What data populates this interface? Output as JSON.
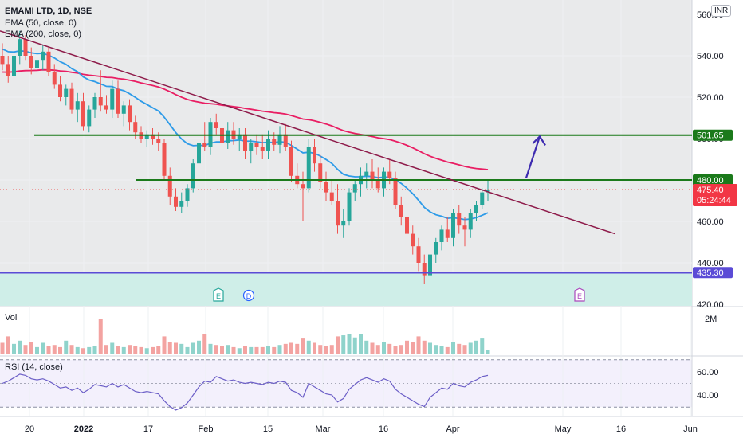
{
  "header": {
    "title": "EMAMI LTD, 1D, NSE",
    "ema50_label": "EMA (50, close, 0)",
    "ema200_label": "EMA (200, close, 0)",
    "currency": "INR"
  },
  "colors": {
    "up": "#26a69a",
    "down": "#ef5350",
    "ema50": "#2e9be8",
    "ema200": "#e91e63",
    "trendline": "#8e1b4a",
    "level": "#1b7a1b",
    "support": "#5b4bd6",
    "zone": "#cfeee8",
    "arrow": "#3d2bb0",
    "rsi": "#6c5fc7",
    "grid": "#eef0f3",
    "plot_bg": "#e9eaeb"
  },
  "chart_data": {
    "type": "candlestick",
    "price_axis": {
      "ticks": [
        "540.00",
        "520.00",
        "500.00",
        "480.00",
        "460.00",
        "440.00",
        "420.00"
      ],
      "cut_top_tick": "560.00"
    },
    "time_axis": {
      "labels": [
        "20",
        "2022",
        "17",
        "Feb",
        "15",
        "Mar",
        "16",
        "Apr",
        "May",
        "16",
        "Jun"
      ]
    },
    "price_labels": [
      {
        "value": "501.65",
        "kind": "level"
      },
      {
        "value": "480.00",
        "kind": "level"
      },
      {
        "value": "475.40",
        "kind": "last"
      },
      {
        "value": "05:24:44",
        "kind": "countdown"
      },
      {
        "value": "435.30",
        "kind": "support"
      }
    ],
    "events": [
      {
        "label": "E",
        "kind": "earnings"
      },
      {
        "label": "D",
        "kind": "dividend"
      },
      {
        "label": "E",
        "kind": "earnings-upcoming"
      }
    ],
    "ohlc": [
      [
        540,
        546,
        533,
        536
      ],
      [
        536,
        540,
        527,
        530
      ],
      [
        530,
        542,
        528,
        540
      ],
      [
        540,
        552,
        536,
        548
      ],
      [
        548,
        550,
        538,
        540
      ],
      [
        540,
        544,
        531,
        534
      ],
      [
        534,
        542,
        530,
        538
      ],
      [
        538,
        545,
        533,
        542
      ],
      [
        542,
        544,
        530,
        532
      ],
      [
        532,
        536,
        524,
        526
      ],
      [
        526,
        530,
        518,
        520
      ],
      [
        520,
        526,
        516,
        524
      ],
      [
        524,
        527,
        512,
        514
      ],
      [
        514,
        522,
        508,
        518
      ],
      [
        518,
        522,
        504,
        506
      ],
      [
        506,
        516,
        503,
        514
      ],
      [
        514,
        522,
        510,
        520
      ],
      [
        520,
        533,
        513,
        516
      ],
      [
        516,
        521,
        512,
        514
      ],
      [
        514,
        528,
        510,
        524
      ],
      [
        524,
        528,
        510,
        512
      ],
      [
        512,
        518,
        506,
        516
      ],
      [
        516,
        519,
        504,
        508
      ],
      [
        508,
        511,
        500,
        503
      ],
      [
        503,
        506,
        498,
        500
      ],
      [
        500,
        504,
        496,
        502
      ],
      [
        502,
        505,
        497,
        500
      ],
      [
        500,
        503,
        494,
        498
      ],
      [
        498,
        500,
        480,
        482
      ],
      [
        482,
        486,
        468,
        472
      ],
      [
        472,
        476,
        465,
        467
      ],
      [
        467,
        474,
        464,
        470
      ],
      [
        470,
        478,
        467,
        476
      ],
      [
        476,
        490,
        474,
        488
      ],
      [
        488,
        501,
        484,
        498
      ],
      [
        498,
        508,
        494,
        496
      ],
      [
        496,
        510,
        492,
        508
      ],
      [
        508,
        512,
        502,
        505
      ],
      [
        505,
        508,
        497,
        498
      ],
      [
        498,
        508,
        495,
        504
      ],
      [
        504,
        508,
        497,
        500
      ],
      [
        500,
        505,
        494,
        502
      ],
      [
        502,
        505,
        490,
        494
      ],
      [
        494,
        500,
        488,
        498
      ],
      [
        498,
        502,
        492,
        496
      ],
      [
        496,
        502,
        490,
        494
      ],
      [
        494,
        504,
        490,
        500
      ],
      [
        500,
        503,
        494,
        497
      ],
      [
        497,
        506,
        493,
        502
      ],
      [
        502,
        507,
        494,
        496
      ],
      [
        496,
        499,
        479,
        482
      ],
      [
        482,
        488,
        476,
        478
      ],
      [
        478,
        484,
        460,
        476
      ],
      [
        476,
        500,
        474,
        496
      ],
      [
        496,
        500,
        484,
        488
      ],
      [
        488,
        492,
        476,
        479
      ],
      [
        479,
        484,
        470,
        474
      ],
      [
        474,
        480,
        468,
        470
      ],
      [
        470,
        478,
        454,
        458
      ],
      [
        458,
        466,
        452,
        460
      ],
      [
        460,
        476,
        458,
        474
      ],
      [
        474,
        480,
        470,
        478
      ],
      [
        478,
        486,
        472,
        482
      ],
      [
        482,
        488,
        476,
        484
      ],
      [
        484,
        490,
        476,
        480
      ],
      [
        480,
        486,
        474,
        476
      ],
      [
        476,
        486,
        472,
        484
      ],
      [
        484,
        490,
        478,
        481
      ],
      [
        481,
        484,
        466,
        468
      ],
      [
        468,
        472,
        458,
        462
      ],
      [
        462,
        466,
        450,
        454
      ],
      [
        454,
        458,
        444,
        448
      ],
      [
        448,
        452,
        436,
        440
      ],
      [
        440,
        444,
        430,
        434
      ],
      [
        434,
        448,
        432,
        444
      ],
      [
        444,
        452,
        440,
        450
      ],
      [
        450,
        458,
        446,
        456
      ],
      [
        456,
        462,
        450,
        452
      ],
      [
        452,
        466,
        448,
        464
      ],
      [
        464,
        468,
        454,
        458
      ],
      [
        458,
        462,
        448,
        456
      ],
      [
        456,
        466,
        452,
        464
      ],
      [
        464,
        470,
        460,
        468
      ],
      [
        468,
        476,
        466,
        474
      ],
      [
        474,
        480,
        470,
        475.4
      ]
    ],
    "overlays": {
      "ema50": {
        "name": "EMA (50, close, 0)"
      },
      "ema200": {
        "name": "EMA (200, close, 0)"
      }
    },
    "horizontal_levels": [
      501.65,
      480.0,
      435.3
    ],
    "volume": {
      "label": "Vol",
      "axis_tick": "2M",
      "values": [
        0.5,
        0.8,
        0.45,
        0.6,
        0.4,
        0.55,
        0.3,
        0.5,
        0.35,
        0.4,
        0.3,
        0.6,
        0.4,
        0.3,
        0.25,
        0.3,
        0.35,
        1.6,
        0.4,
        0.5,
        0.35,
        0.3,
        0.4,
        0.35,
        0.3,
        0.25,
        0.3,
        0.35,
        0.8,
        0.55,
        0.5,
        0.45,
        0.3,
        0.5,
        0.6,
        0.9,
        0.45,
        0.4,
        0.35,
        0.4,
        0.3,
        0.25,
        0.35,
        0.3,
        0.3,
        0.3,
        0.35,
        0.3,
        0.4,
        0.45,
        0.5,
        0.45,
        0.7,
        0.6,
        0.5,
        0.4,
        0.35,
        0.4,
        0.8,
        0.85,
        0.9,
        0.75,
        0.9,
        0.6,
        0.5,
        0.4,
        0.55,
        0.45,
        0.35,
        0.4,
        0.6,
        0.55,
        0.8,
        0.6,
        0.5,
        0.4,
        0.35,
        0.3,
        0.55,
        0.45,
        0.4,
        0.5,
        0.6,
        0.7,
        0.15
      ]
    },
    "rsi": {
      "label": "RSI (14, close)",
      "ticks": [
        "60.00",
        "40.00"
      ],
      "values": [
        50,
        52,
        55,
        58,
        57,
        54,
        53,
        54,
        52,
        49,
        46,
        47,
        44,
        46,
        42,
        45,
        49,
        48,
        47,
        50,
        47,
        49,
        46,
        43,
        42,
        43,
        42,
        41,
        35,
        30,
        27,
        29,
        33,
        40,
        47,
        52,
        51,
        56,
        54,
        52,
        53,
        51,
        50,
        51,
        50,
        49,
        51,
        50,
        52,
        51,
        44,
        42,
        38,
        50,
        47,
        44,
        41,
        40,
        34,
        37,
        45,
        49,
        53,
        55,
        53,
        51,
        54,
        52,
        45,
        41,
        38,
        35,
        32,
        30,
        38,
        42,
        46,
        45,
        50,
        48,
        47,
        51,
        53,
        56,
        57
      ]
    }
  }
}
